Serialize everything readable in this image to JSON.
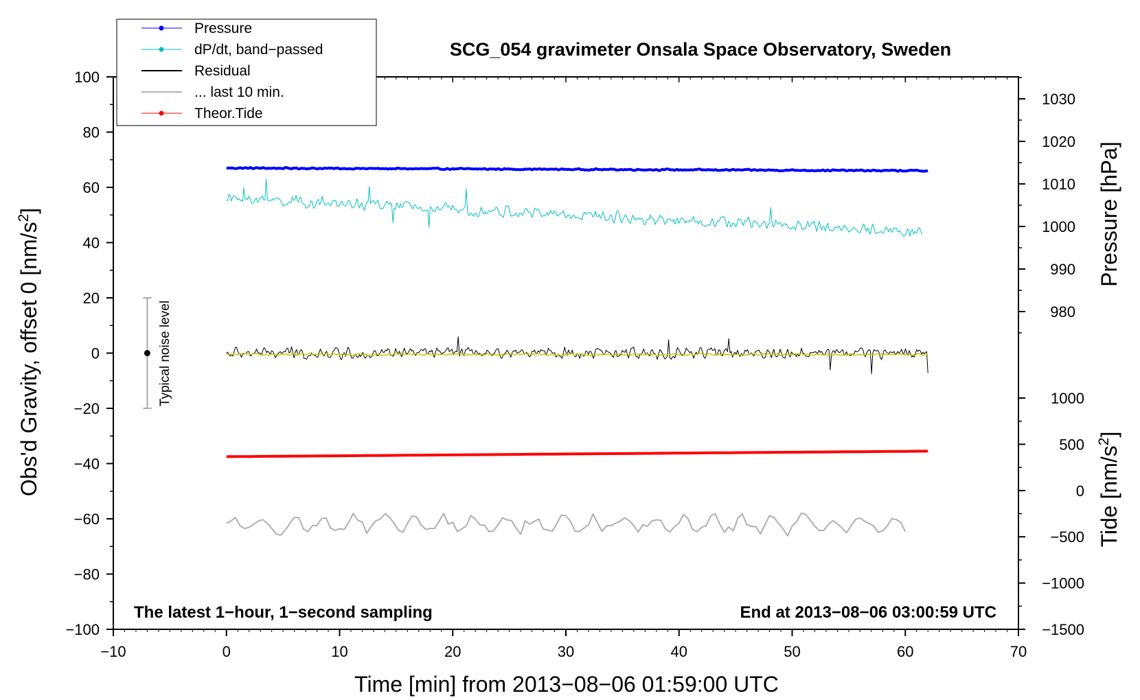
{
  "chart_data": {
    "type": "line",
    "title": "SCG_054 gravimeter Onsala Space Observatory, Sweden",
    "xlabel": "Time [min] from 2013−08−06 01:59:00 UTC",
    "ylabel_prefix": "Obs'd Gravity, offset 0 [nm/s",
    "ylabel_exp": "2",
    "ylabel_suffix": "]",
    "y2label": "Pressure [hPa]",
    "y3label_prefix": "Tide [nm/s",
    "y3label_exp": "2",
    "y3label_suffix": "]",
    "xlim": [
      -10,
      70
    ],
    "ylim": [
      -100,
      100
    ],
    "x_ticks": [
      "−10",
      "0",
      "10",
      "20",
      "30",
      "40",
      "50",
      "60",
      "70"
    ],
    "y_ticks": [
      "100",
      "80",
      "60",
      "40",
      "20",
      "0",
      "−20",
      "−40",
      "−60",
      "−80",
      "−100"
    ],
    "pressure_ticks": [
      "1030",
      "1020",
      "1010",
      "1000",
      "990",
      "980"
    ],
    "tide_ticks": [
      "1000",
      "500",
      "0",
      "−500",
      "−1000",
      "−1500"
    ],
    "annotation_left": "The latest 1−hour, 1−second sampling",
    "annotation_right": "End at 2013−08−06 03:00:59 UTC",
    "noise_label": "Typical noise level",
    "noise_bar": {
      "x": -7,
      "center": 0,
      "low": -20,
      "high": 20
    },
    "legend": [
      {
        "label": "Pressure",
        "color": "#0000ff",
        "marker": true
      },
      {
        "label": "dP/dt, band−passed",
        "color": "#00c0c0",
        "marker": true
      },
      {
        "label": "Residual",
        "color": "#000000",
        "marker": false
      },
      {
        "label": "... last 10 min.",
        "color": "#b0b0b0",
        "marker": false
      },
      {
        "label": "Theor.Tide",
        "color": "#ff0000",
        "marker": true
      }
    ],
    "series": [
      {
        "name": "Pressure",
        "color": "#0000ff",
        "x_range": [
          0,
          62
        ],
        "y_start": 67,
        "y_end": 66,
        "noise": 0.3,
        "width": 4
      },
      {
        "name": "dP/dt, band-passed",
        "color": "#00c0c0",
        "x_range": [
          0,
          61.5
        ],
        "y_start": 56,
        "y_end": 44,
        "noise": 2.5,
        "width": 1
      },
      {
        "name": "Residual",
        "color": "#000000",
        "x_range": [
          0,
          62
        ],
        "y_start": 0,
        "y_end": 0,
        "noise": 2.5,
        "width": 1
      },
      {
        "name": "Residual smoothed",
        "color": "#c8c800",
        "x_range": [
          0,
          62
        ],
        "y_start": -0.5,
        "y_end": -0.5,
        "noise": 0.5,
        "width": 1.5
      },
      {
        "name": "Theor.Tide",
        "color": "#ff0000",
        "x_range": [
          0,
          62
        ],
        "y_start": -37.5,
        "y_end": -35.5,
        "noise": 0,
        "width": 4
      },
      {
        "name": "... last 10 min.",
        "color": "#b0b0b0",
        "x_range": [
          0,
          60
        ],
        "y_start": -62,
        "y_end": -62,
        "noise": 3,
        "width": 2
      }
    ]
  }
}
